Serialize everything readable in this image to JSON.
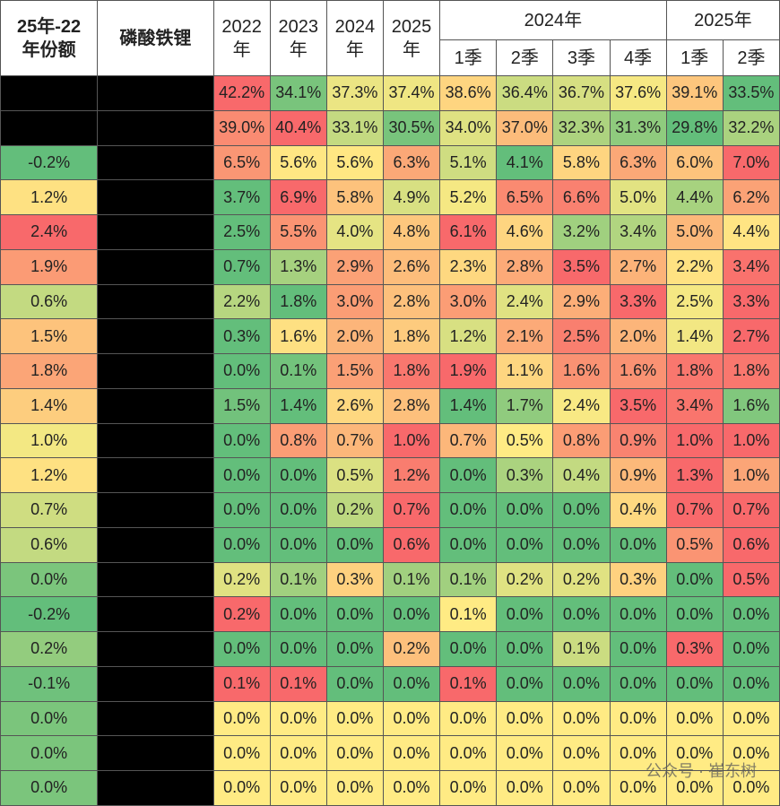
{
  "header": {
    "share": [
      "25年-22",
      "年份额"
    ],
    "material": "磷酸铁锂",
    "years": [
      [
        "2022",
        "年"
      ],
      [
        "2023",
        "年"
      ],
      [
        "2024",
        "年"
      ],
      [
        "2025",
        "年"
      ]
    ],
    "groups": [
      {
        "label": "2024年",
        "quarters": [
          "1季",
          "2季",
          "3季",
          "4季"
        ]
      },
      {
        "label": "2025年",
        "quarters": [
          "1季",
          "2季"
        ]
      }
    ]
  },
  "table": {
    "rows": [
      {
        "values": [
          "42.2%",
          "34.1%",
          "37.3%",
          "37.4%",
          "38.6%",
          "36.4%",
          "36.7%",
          "37.6%",
          "39.1%",
          "33.5%"
        ]
      },
      {
        "values": [
          "39.0%",
          "40.4%",
          "33.1%",
          "30.5%",
          "34.0%",
          "37.0%",
          "32.3%",
          "31.3%",
          "29.8%",
          "32.2%"
        ]
      },
      {
        "share": "-0.2%",
        "values": [
          "6.5%",
          "5.6%",
          "5.6%",
          "6.3%",
          "5.1%",
          "4.1%",
          "5.8%",
          "6.3%",
          "6.0%",
          "7.0%"
        ]
      },
      {
        "share": "1.2%",
        "values": [
          "3.7%",
          "6.9%",
          "5.8%",
          "4.9%",
          "5.2%",
          "6.5%",
          "6.6%",
          "5.0%",
          "4.4%",
          "6.2%"
        ]
      },
      {
        "share": "2.4%",
        "values": [
          "2.5%",
          "5.5%",
          "4.0%",
          "4.8%",
          "6.1%",
          "4.6%",
          "3.2%",
          "3.4%",
          "5.0%",
          "4.4%"
        ]
      },
      {
        "share": "1.9%",
        "values": [
          "0.7%",
          "1.3%",
          "2.9%",
          "2.6%",
          "2.3%",
          "2.8%",
          "3.5%",
          "2.7%",
          "2.2%",
          "3.4%"
        ]
      },
      {
        "share": "0.6%",
        "values": [
          "2.2%",
          "1.8%",
          "3.0%",
          "2.8%",
          "3.0%",
          "2.4%",
          "2.9%",
          "3.3%",
          "2.5%",
          "3.3%"
        ]
      },
      {
        "share": "1.5%",
        "values": [
          "0.3%",
          "1.6%",
          "2.0%",
          "1.8%",
          "1.2%",
          "2.1%",
          "2.5%",
          "2.0%",
          "1.4%",
          "2.7%"
        ]
      },
      {
        "share": "1.8%",
        "values": [
          "0.0%",
          "0.1%",
          "1.5%",
          "1.8%",
          "1.9%",
          "1.1%",
          "1.6%",
          "1.6%",
          "1.8%",
          "1.8%"
        ]
      },
      {
        "share": "1.4%",
        "values": [
          "1.5%",
          "1.4%",
          "2.6%",
          "2.8%",
          "1.4%",
          "1.7%",
          "2.4%",
          "3.5%",
          "3.4%",
          "1.6%"
        ]
      },
      {
        "share": "1.0%",
        "values": [
          "0.0%",
          "0.8%",
          "0.7%",
          "1.0%",
          "0.7%",
          "0.5%",
          "0.8%",
          "0.9%",
          "1.0%",
          "1.0%"
        ]
      },
      {
        "share": "1.2%",
        "values": [
          "0.0%",
          "0.0%",
          "0.5%",
          "1.2%",
          "0.0%",
          "0.3%",
          "0.4%",
          "0.9%",
          "1.3%",
          "1.0%"
        ]
      },
      {
        "share": "0.7%",
        "values": [
          "0.0%",
          "0.0%",
          "0.2%",
          "0.7%",
          "0.0%",
          "0.0%",
          "0.0%",
          "0.4%",
          "0.7%",
          "0.7%"
        ]
      },
      {
        "share": "0.6%",
        "values": [
          "0.0%",
          "0.0%",
          "0.0%",
          "0.6%",
          "0.0%",
          "0.0%",
          "0.0%",
          "0.0%",
          "0.5%",
          "0.6%"
        ]
      },
      {
        "share": "0.0%",
        "values": [
          "0.2%",
          "0.1%",
          "0.3%",
          "0.1%",
          "0.1%",
          "0.2%",
          "0.2%",
          "0.3%",
          "0.0%",
          "0.5%"
        ]
      },
      {
        "share": "-0.2%",
        "values": [
          "0.2%",
          "0.0%",
          "0.0%",
          "0.0%",
          "0.1%",
          "0.0%",
          "0.0%",
          "0.0%",
          "0.0%",
          "0.0%"
        ]
      },
      {
        "share": "0.2%",
        "values": [
          "0.0%",
          "0.0%",
          "0.0%",
          "0.2%",
          "0.0%",
          "0.0%",
          "0.1%",
          "0.0%",
          "0.3%",
          "0.0%"
        ]
      },
      {
        "share": "-0.1%",
        "values": [
          "0.1%",
          "0.1%",
          "0.0%",
          "0.0%",
          "0.1%",
          "0.0%",
          "0.0%",
          "0.0%",
          "0.0%",
          "0.0%"
        ]
      },
      {
        "share": "0.0%",
        "values": [
          "0.0%",
          "0.0%",
          "0.0%",
          "0.0%",
          "0.0%",
          "0.0%",
          "0.0%",
          "0.0%",
          "0.0%",
          "0.0%"
        ]
      },
      {
        "share": "0.0%",
        "values": [
          "0.0%",
          "0.0%",
          "0.0%",
          "0.0%",
          "0.0%",
          "0.0%",
          "0.0%",
          "0.0%",
          "0.0%",
          "0.0%"
        ]
      },
      {
        "share": "0.0%",
        "values": [
          "0.0%",
          "0.0%",
          "0.0%",
          "0.0%",
          "0.0%",
          "0.0%",
          "0.0%",
          "0.0%",
          "0.0%",
          "0.0%"
        ]
      }
    ]
  },
  "watermark": "公众号 · 崔东树"
}
